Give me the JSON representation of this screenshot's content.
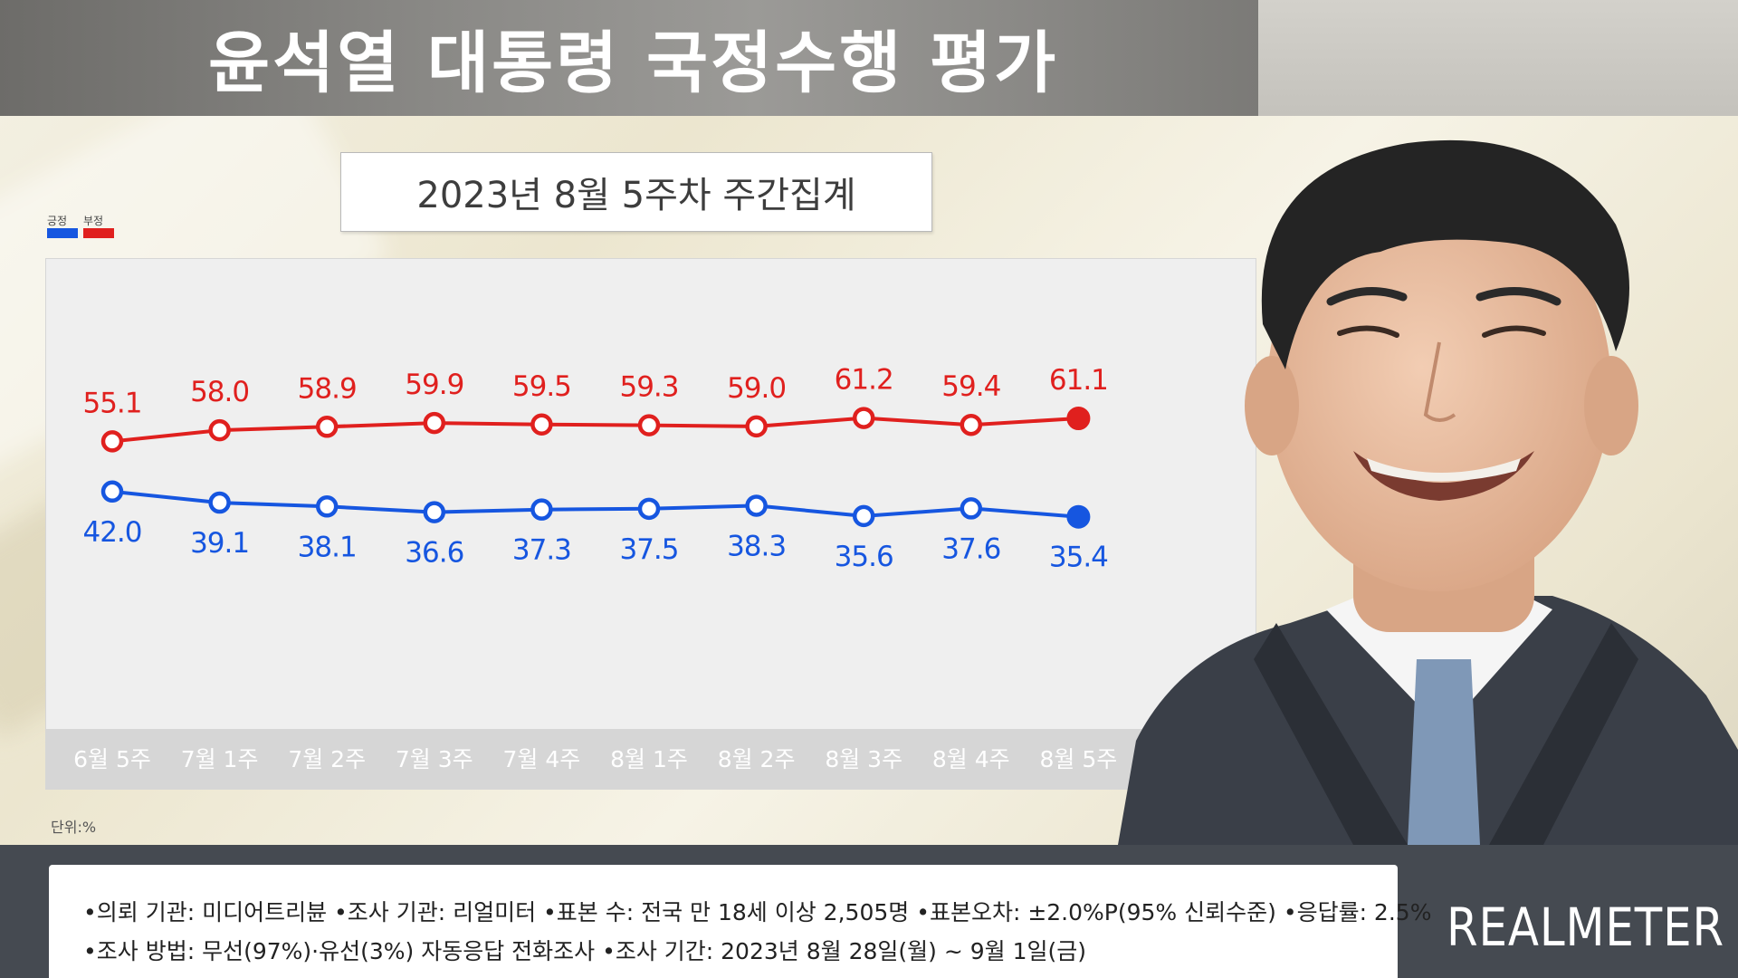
{
  "header": {
    "title": "윤석열 대통령 국정수행 평가"
  },
  "subtitle": "2023년 8월 5주차 주간집계",
  "legend": [
    {
      "label": "긍정",
      "color": "#1656e0"
    },
    {
      "label": "부정",
      "color": "#e0201e"
    }
  ],
  "unit_label": "단위:%",
  "chart_data": {
    "type": "line",
    "title": "윤석열 대통령 국정수행 평가",
    "subtitle": "2023년 8월 5주차 주간집계",
    "categories": [
      "6월 5주",
      "7월 1주",
      "7월 2주",
      "7월 3주",
      "7월 4주",
      "8월 1주",
      "8월 2주",
      "8월 3주",
      "8월 4주",
      "8월 5주"
    ],
    "series": [
      {
        "name": "부정",
        "color": "#e0201e",
        "values": [
          55.1,
          58.0,
          58.9,
          59.9,
          59.5,
          59.3,
          59.0,
          61.2,
          59.4,
          61.1
        ],
        "labels": [
          "55.1",
          "58.0",
          "58.9",
          "59.9",
          "59.5",
          "59.3",
          "59.0",
          "61.2",
          "59.4",
          "61.1"
        ]
      },
      {
        "name": "긍정",
        "color": "#1656e0",
        "values": [
          42.0,
          39.1,
          38.1,
          36.6,
          37.3,
          37.5,
          38.3,
          35.6,
          37.6,
          35.4
        ],
        "labels": [
          "42.0",
          "39.1",
          "38.1",
          "36.6",
          "37.3",
          "37.5",
          "38.3",
          "35.6",
          "37.6",
          "35.4"
        ]
      }
    ],
    "xlabel": "",
    "ylabel": "",
    "grid": false,
    "legend_position": "top-left"
  },
  "footer": {
    "notes": [
      "•의뢰 기관: 미디어트리뷴 •조사 기관: 리얼미터 •표본 수: 전국 만 18세 이상 2,505명 •표본오차: ±2.0%P(95% 신뢰수준) •응답률: 2.5%",
      "•조사 방법: 무선(97%)·유선(3%) 자동응답 전화조사 •조사 기간: 2023년 8월 28일(월) ~ 9월 1일(금)"
    ],
    "logo": "REALMETER"
  }
}
